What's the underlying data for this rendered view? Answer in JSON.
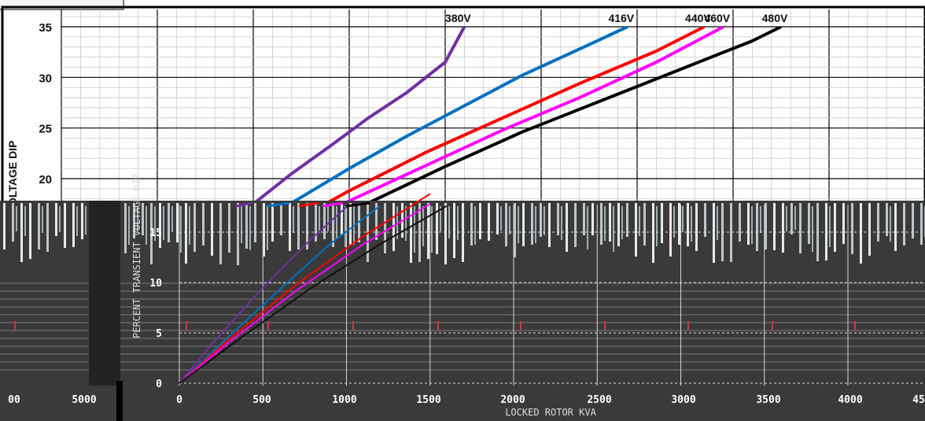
{
  "chart_data": {
    "type": "line",
    "xlabel": "LOCKED ROTOR KVA",
    "ylabel": "PERCENT TRANSIENT VOLTAGE DIP",
    "ylim": [
      0,
      35
    ],
    "xlim": [
      0,
      4500
    ],
    "grid": true,
    "ytick_labels": [
      "35",
      "30",
      "25",
      "20",
      "15",
      "10",
      "5",
      "0"
    ],
    "xtick_labels": [
      "0",
      "500",
      "1000",
      "1500",
      "2000",
      "2500",
      "3000",
      "3500",
      "4000",
      "45"
    ],
    "xtick_labels_left": [
      "00",
      "5000"
    ],
    "series": [
      {
        "name": "380V",
        "color": "#7030a0",
        "x": [
          0,
          200,
          500,
          800,
          1000,
          1200,
          1400,
          1600,
          1800,
          2000,
          2100
        ],
        "y": [
          0,
          4.0,
          9.5,
          14.5,
          17.5,
          20.5,
          23.2,
          26.0,
          28.5,
          31.5,
          35
        ]
      },
      {
        "name": "416V",
        "color": "#0070c0",
        "x": [
          0,
          300,
          600,
          900,
          1200,
          1500,
          1800,
          2100,
          2400,
          2700,
          2950
        ],
        "y": [
          0,
          4.7,
          9.3,
          13.8,
          17.6,
          21.0,
          24.2,
          27.2,
          30.2,
          32.8,
          35
        ]
      },
      {
        "name": "440V",
        "color": "#ff0000",
        "x": [
          0,
          300,
          700,
          1100,
          1500,
          1900,
          2300,
          2700,
          3100,
          3350
        ],
        "y": [
          0,
          4.4,
          9.8,
          14.6,
          18.8,
          22.6,
          26.0,
          29.4,
          32.6,
          35
        ]
      },
      {
        "name": "460V",
        "color": "#ff00ff",
        "x": [
          0,
          300,
          700,
          1100,
          1500,
          1900,
          2300,
          2700,
          3100,
          3450
        ],
        "y": [
          0,
          4.1,
          9.2,
          13.8,
          17.8,
          21.3,
          24.8,
          28.0,
          31.5,
          35
        ]
      },
      {
        "name": "480V",
        "color": "#000000",
        "x": [
          0,
          400,
          800,
          1200,
          1600,
          2000,
          2400,
          2800,
          3200,
          3600,
          3750
        ],
        "y": [
          0,
          4.9,
          9.6,
          13.8,
          17.6,
          21.2,
          24.6,
          27.6,
          30.6,
          33.6,
          35
        ]
      }
    ]
  }
}
